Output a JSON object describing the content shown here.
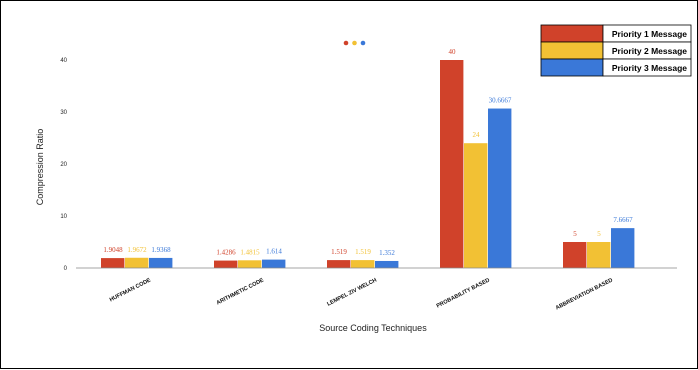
{
  "chart_data": {
    "type": "bar",
    "categories": [
      "HUFFMAN CODE",
      "ARITHMETIC CODE",
      "LEMPEL ZIV WELCH",
      "PROBABILITY BASED",
      "ABBREVIATION BASED"
    ],
    "series": [
      {
        "name": "Priority 1 Message",
        "color": "#d0422a",
        "values": [
          1.9048,
          1.4286,
          1.519,
          40,
          5
        ],
        "labels": [
          "1.9048",
          "1.4286",
          "1.519",
          "40",
          "5"
        ]
      },
      {
        "name": "Priority 2 Message",
        "color": "#f2c134",
        "values": [
          1.9672,
          1.4815,
          1.519,
          24,
          5
        ],
        "labels": [
          "1.9672",
          "1.4815",
          "1.519",
          "24",
          "5"
        ]
      },
      {
        "name": "Priority 3 Message",
        "color": "#3a78d8",
        "values": [
          1.9368,
          1.614,
          1.352,
          30.6667,
          7.6667
        ],
        "labels": [
          "1.9368",
          "1.614",
          "1.352",
          "30.6667",
          "7.6667"
        ]
      }
    ],
    "xlabel": "Source Coding Techniques",
    "ylabel": "Compression Ratio",
    "yticks": [
      0,
      10,
      20,
      30,
      40
    ],
    "ylim": [
      0,
      42
    ],
    "grid": false,
    "legend_position": "top-right",
    "decoration_dot_colors": [
      "#d0422a",
      "#f2c134",
      "#3a78d8"
    ]
  }
}
